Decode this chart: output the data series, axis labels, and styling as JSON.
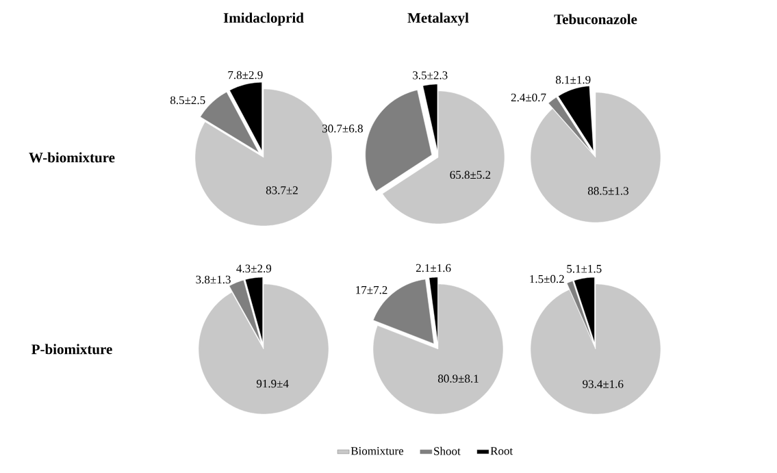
{
  "chart_data": [
    {
      "type": "pie",
      "title": "Imidacloprid",
      "ylabel": "W-biomixture",
      "categories": [
        null,
        null,
        null
      ],
      "values": [
        83.7,
        8.5,
        7.8
      ],
      "value_labels": [
        "83.7±2",
        "8.5±2.5",
        "7.8±2.9"
      ],
      "colors": [
        "#c8c8c8",
        "#7f7f7f",
        "#000000"
      ]
    },
    {
      "type": "pie",
      "title": "Metalaxyl",
      "categories": [
        null,
        null,
        null
      ],
      "values": [
        65.8,
        30.7,
        3.5
      ],
      "value_labels": [
        "65.8±5.2",
        "30.7±6.8",
        "3.5±2.3"
      ],
      "colors": [
        "#c8c8c8",
        "#7f7f7f",
        "#000000"
      ]
    },
    {
      "type": "pie",
      "title": "Tebuconazole",
      "categories": [
        null,
        null,
        null
      ],
      "values": [
        88.5,
        2.4,
        8.1
      ],
      "value_labels": [
        "88.5±1.3",
        "2.4±0.7",
        "8.1±1.9"
      ],
      "colors": [
        "#c8c8c8",
        "#7f7f7f",
        "#000000"
      ]
    },
    {
      "type": "pie",
      "ylabel": "P-biomixture",
      "categories": [
        null,
        null,
        null
      ],
      "values": [
        91.9,
        3.8,
        4.3
      ],
      "value_labels": [
        "91.9±4",
        "3.8±1.3",
        "4.3±2.9"
      ],
      "colors": [
        "#c8c8c8",
        "#7f7f7f",
        "#000000"
      ]
    },
    {
      "type": "pie",
      "categories": [
        null,
        null,
        null
      ],
      "values": [
        80.9,
        17,
        2.1
      ],
      "value_labels": [
        "80.9±8.1",
        "17±7.2",
        "2.1±1.6"
      ],
      "colors": [
        "#c8c8c8",
        "#7f7f7f",
        "#000000"
      ]
    },
    {
      "type": "pie",
      "legend": "bottom",
      "categories": [
        "Biomixture",
        "Shoot",
        "Root"
      ],
      "values": [
        93.4,
        1.5,
        5.1
      ],
      "value_labels": [
        "93.4±1.6",
        "1.5±0.2",
        "5.1±1.5"
      ],
      "colors": [
        "#c8c8c8",
        "#7f7f7f",
        "#000000"
      ]
    }
  ]
}
